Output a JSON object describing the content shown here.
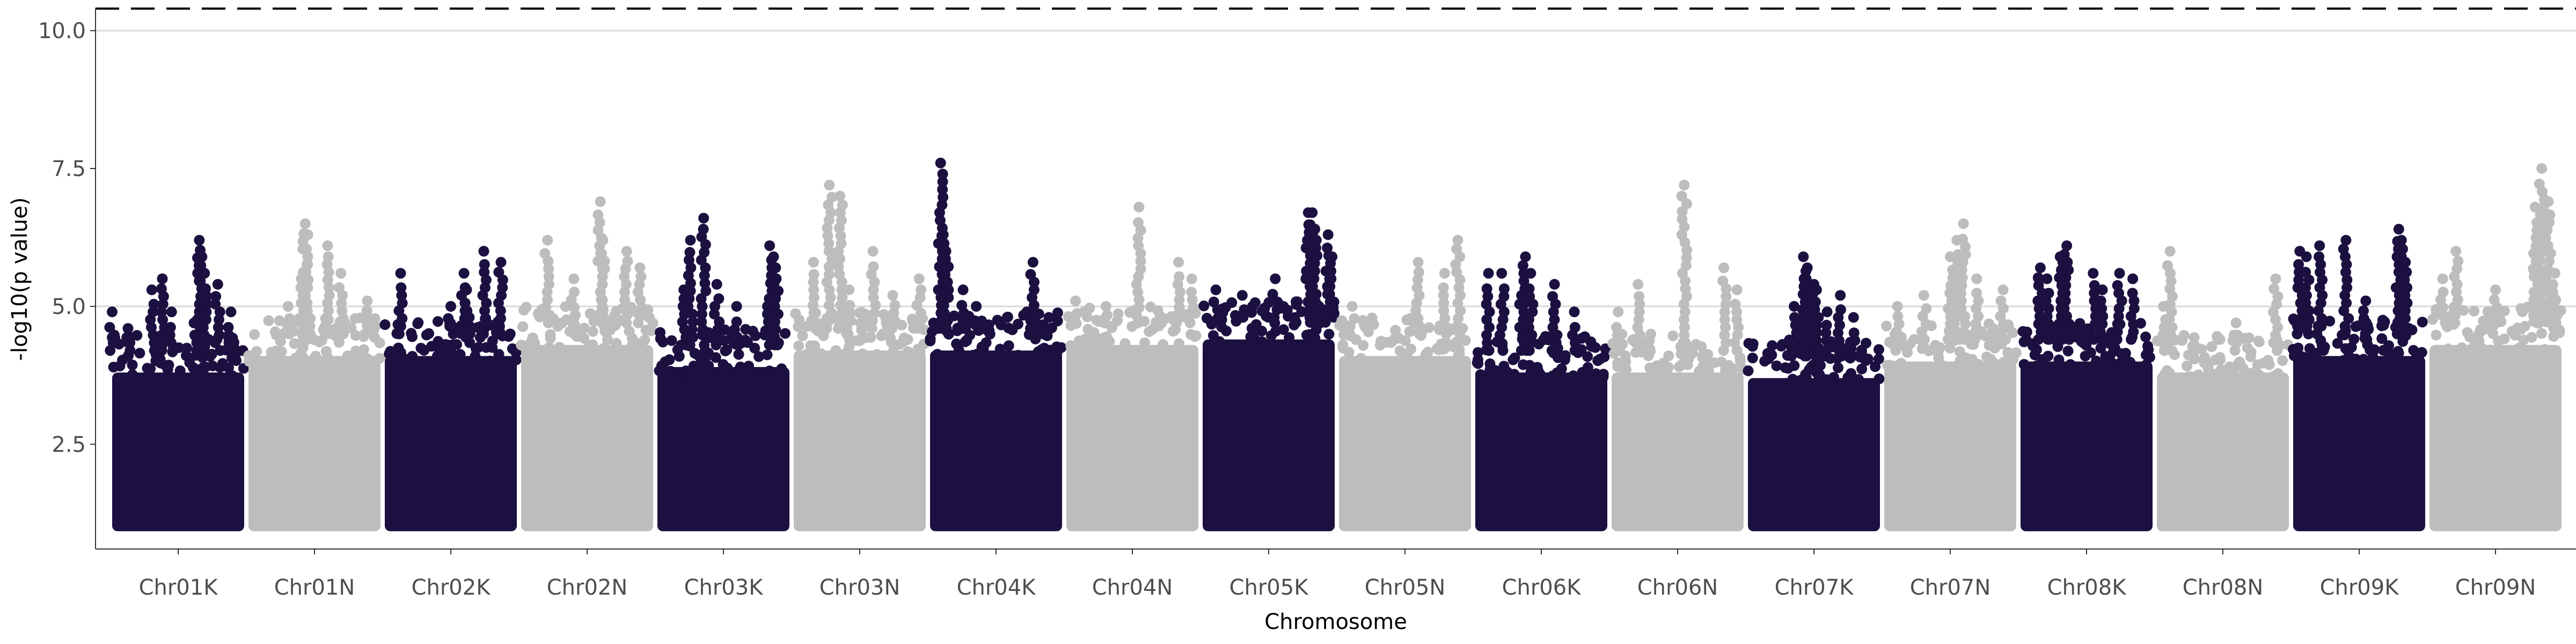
{
  "chart_data": {
    "type": "scatter",
    "title": "",
    "xlabel": "Chromosome",
    "ylabel": "-log10(p value)",
    "ylim": [
      0.6,
      10.4
    ],
    "yticks": [
      "2.5",
      "5.0",
      "7.5",
      "10.0"
    ],
    "ytick_values": [
      2.5,
      5.0,
      7.5,
      10.0
    ],
    "gridlines_y": [
      5.0,
      10.0
    ],
    "threshold_line": 10.4,
    "point_floor": 1.0,
    "colors": {
      "dark": "#1b1040",
      "light": "#bdbdbd",
      "grid": "#d9d9d9",
      "axis": "#333333"
    },
    "categories": [
      "Chr01K",
      "Chr01N",
      "Chr02K",
      "Chr02N",
      "Chr03K",
      "Chr03N",
      "Chr04K",
      "Chr04N",
      "Chr05K",
      "Chr05N",
      "Chr06K",
      "Chr06N",
      "Chr07K",
      "Chr07N",
      "Chr08K",
      "Chr08N",
      "Chr09K",
      "Chr09N"
    ],
    "series": [
      {
        "category": "Chr01K",
        "color": "dark",
        "dense_top": 4.0,
        "peaks": [
          [
            0.0,
            4.9
          ],
          [
            0.12,
            4.6
          ],
          [
            0.3,
            5.3
          ],
          [
            0.38,
            5.5
          ],
          [
            0.45,
            4.9
          ],
          [
            0.62,
            4.7
          ],
          [
            0.66,
            6.2
          ],
          [
            0.68,
            5.9
          ],
          [
            0.7,
            5.6
          ],
          [
            0.8,
            5.4
          ],
          [
            0.9,
            4.9
          ],
          [
            0.99,
            4.2
          ]
        ]
      },
      {
        "category": "Chr01N",
        "color": "light",
        "dense_top": 4.3,
        "peaks": [
          [
            0.3,
            5.0
          ],
          [
            0.4,
            5.5
          ],
          [
            0.43,
            6.5
          ],
          [
            0.45,
            6.3
          ],
          [
            0.6,
            6.1
          ],
          [
            0.7,
            5.6
          ],
          [
            0.9,
            5.1
          ]
        ]
      },
      {
        "category": "Chr02K",
        "color": "dark",
        "dense_top": 4.3,
        "peaks": [
          [
            0.12,
            5.6
          ],
          [
            0.5,
            5.0
          ],
          [
            0.6,
            5.6
          ],
          [
            0.62,
            5.3
          ],
          [
            0.64,
            4.8
          ],
          [
            0.75,
            6.0
          ],
          [
            0.88,
            5.8
          ],
          [
            0.95,
            4.5
          ]
        ]
      },
      {
        "category": "Chr02N",
        "color": "light",
        "dense_top": 4.5,
        "peaks": [
          [
            0.2,
            6.2
          ],
          [
            0.4,
            5.5
          ],
          [
            0.6,
            6.9
          ],
          [
            0.62,
            6.2
          ],
          [
            0.8,
            6.0
          ],
          [
            0.9,
            5.7
          ]
        ]
      },
      {
        "category": "Chr03K",
        "color": "dark",
        "dense_top": 4.1,
        "peaks": [
          [
            0.2,
            5.3
          ],
          [
            0.25,
            6.2
          ],
          [
            0.35,
            6.6
          ],
          [
            0.45,
            5.4
          ],
          [
            0.6,
            5.0
          ],
          [
            0.85,
            6.1
          ],
          [
            0.88,
            5.9
          ],
          [
            0.9,
            5.5
          ]
        ]
      },
      {
        "category": "Chr03N",
        "color": "light",
        "dense_top": 4.4,
        "peaks": [
          [
            0.15,
            5.8
          ],
          [
            0.27,
            7.2
          ],
          [
            0.35,
            7.0
          ],
          [
            0.42,
            5.3
          ],
          [
            0.6,
            6.0
          ],
          [
            0.75,
            5.2
          ],
          [
            0.95,
            5.5
          ]
        ]
      },
      {
        "category": "Chr04K",
        "color": "dark",
        "dense_top": 4.4,
        "peaks": [
          [
            0.08,
            7.6
          ],
          [
            0.1,
            6.3
          ],
          [
            0.12,
            6.0
          ],
          [
            0.25,
            5.3
          ],
          [
            0.35,
            5.0
          ],
          [
            0.78,
            5.8
          ],
          [
            0.9,
            4.8
          ]
        ]
      },
      {
        "category": "Chr04N",
        "color": "light",
        "dense_top": 4.5,
        "peaks": [
          [
            0.07,
            5.1
          ],
          [
            0.3,
            5.0
          ],
          [
            0.55,
            6.8
          ],
          [
            0.85,
            5.8
          ],
          [
            0.95,
            5.5
          ]
        ]
      },
      {
        "category": "Chr05K",
        "color": "dark",
        "dense_top": 4.6,
        "peaks": [
          [
            0.1,
            5.3
          ],
          [
            0.3,
            5.2
          ],
          [
            0.55,
            5.5
          ],
          [
            0.8,
            6.7
          ],
          [
            0.83,
            6.7
          ],
          [
            0.85,
            6.4
          ],
          [
            0.95,
            6.3
          ],
          [
            0.98,
            5.9
          ]
        ]
      },
      {
        "category": "Chr05N",
        "color": "light",
        "dense_top": 4.3,
        "peaks": [
          [
            0.1,
            5.0
          ],
          [
            0.6,
            5.8
          ],
          [
            0.8,
            5.6
          ],
          [
            0.9,
            6.2
          ]
        ]
      },
      {
        "category": "Chr06K",
        "color": "dark",
        "dense_top": 4.0,
        "peaks": [
          [
            0.1,
            5.6
          ],
          [
            0.2,
            5.6
          ],
          [
            0.35,
            5.2
          ],
          [
            0.38,
            5.9
          ],
          [
            0.42,
            5.6
          ],
          [
            0.6,
            5.4
          ],
          [
            0.75,
            4.9
          ]
        ]
      },
      {
        "category": "Chr06N",
        "color": "light",
        "dense_top": 4.0,
        "peaks": [
          [
            0.05,
            4.9
          ],
          [
            0.2,
            5.4
          ],
          [
            0.55,
            7.2
          ],
          [
            0.85,
            5.7
          ],
          [
            0.95,
            5.3
          ]
        ]
      },
      {
        "category": "Chr07K",
        "color": "dark",
        "dense_top": 3.9,
        "peaks": [
          [
            0.35,
            5.0
          ],
          [
            0.42,
            5.9
          ],
          [
            0.45,
            5.7
          ],
          [
            0.5,
            5.4
          ],
          [
            0.52,
            5.3
          ],
          [
            0.6,
            4.9
          ],
          [
            0.7,
            5.2
          ],
          [
            0.8,
            4.8
          ]
        ]
      },
      {
        "category": "Chr07N",
        "color": "light",
        "dense_top": 4.2,
        "peaks": [
          [
            0.1,
            5.0
          ],
          [
            0.3,
            5.2
          ],
          [
            0.5,
            5.9
          ],
          [
            0.55,
            6.2
          ],
          [
            0.6,
            6.5
          ],
          [
            0.7,
            5.5
          ],
          [
            0.9,
            5.3
          ]
        ]
      },
      {
        "category": "Chr08K",
        "color": "dark",
        "dense_top": 4.2,
        "peaks": [
          [
            0.15,
            5.7
          ],
          [
            0.2,
            5.5
          ],
          [
            0.3,
            5.9
          ],
          [
            0.32,
            5.8
          ],
          [
            0.35,
            6.1
          ],
          [
            0.55,
            5.6
          ],
          [
            0.62,
            5.3
          ],
          [
            0.75,
            5.6
          ],
          [
            0.85,
            5.5
          ]
        ]
      },
      {
        "category": "Chr08N",
        "color": "light",
        "dense_top": 4.0,
        "peaks": [
          [
            0.05,
            5.0
          ],
          [
            0.1,
            6.0
          ],
          [
            0.6,
            4.7
          ],
          [
            0.9,
            5.5
          ]
        ]
      },
      {
        "category": "Chr09K",
        "color": "dark",
        "dense_top": 4.3,
        "peaks": [
          [
            0.05,
            6.0
          ],
          [
            0.1,
            5.9
          ],
          [
            0.2,
            6.1
          ],
          [
            0.4,
            6.2
          ],
          [
            0.55,
            5.1
          ],
          [
            0.8,
            6.4
          ],
          [
            0.82,
            6.2
          ],
          [
            0.85,
            5.8
          ]
        ]
      },
      {
        "category": "Chr09N",
        "color": "light",
        "dense_top": 4.5,
        "peaks": [
          [
            0.1,
            5.5
          ],
          [
            0.2,
            6.0
          ],
          [
            0.5,
            5.3
          ],
          [
            0.8,
            6.8
          ],
          [
            0.85,
            7.5
          ],
          [
            0.9,
            6.9
          ],
          [
            0.95,
            5.6
          ]
        ]
      }
    ]
  }
}
